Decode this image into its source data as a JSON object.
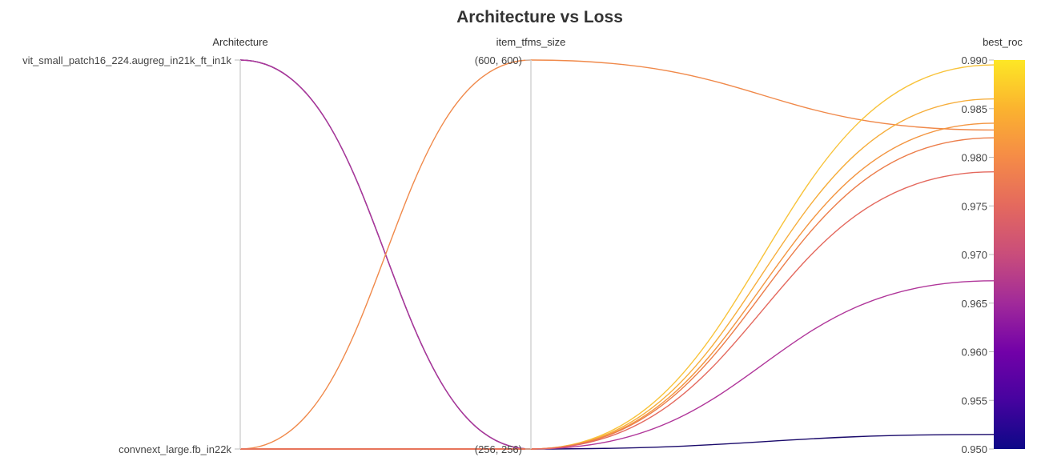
{
  "chart_data": {
    "type": "parallel_coordinates",
    "title": "Architecture vs Loss",
    "dimensions": [
      {
        "name": "Architecture",
        "kind": "categorical",
        "categories": [
          "vit_small_patch16_224.augreg_in21k_ft_in1k",
          "convnext_large.fb_in22k"
        ]
      },
      {
        "name": "item_tfms_size",
        "kind": "categorical",
        "categories": [
          "(600, 600)",
          "(256, 256)"
        ]
      },
      {
        "name": "best_roc",
        "kind": "numeric",
        "range": [
          0.95,
          0.99
        ],
        "ticks": [
          "0.990",
          "0.985",
          "0.980",
          "0.975",
          "0.970",
          "0.965",
          "0.960",
          "0.955",
          "0.950"
        ]
      }
    ],
    "colorbar": {
      "range": [
        0.95,
        0.99
      ],
      "stops": [
        "#fde725",
        "#fbb32f",
        "#f58b47",
        "#e4695e",
        "#c94d7b",
        "#a12a9a",
        "#7201a8",
        "#46039f",
        "#0d0887"
      ]
    },
    "runs": [
      {
        "Architecture": "vit_small_patch16_224.augreg_in21k_ft_in1k",
        "item_tfms_size": "(256, 256)",
        "best_roc": 0.9515,
        "color": "#1a0a6b"
      },
      {
        "Architecture": "vit_small_patch16_224.augreg_in21k_ft_in1k",
        "item_tfms_size": "(256, 256)",
        "best_roc": 0.9673,
        "color": "#b0369a"
      },
      {
        "Architecture": "convnext_large.fb_in22k",
        "item_tfms_size": "(600, 600)",
        "best_roc": 0.9828,
        "color": "#f0894a"
      },
      {
        "Architecture": "convnext_large.fb_in22k",
        "item_tfms_size": "(256, 256)",
        "best_roc": 0.9895,
        "color": "#f8c33a"
      },
      {
        "Architecture": "convnext_large.fb_in22k",
        "item_tfms_size": "(256, 256)",
        "best_roc": 0.986,
        "color": "#f6ad3a"
      },
      {
        "Architecture": "convnext_large.fb_in22k",
        "item_tfms_size": "(256, 256)",
        "best_roc": 0.9835,
        "color": "#f39540"
      },
      {
        "Architecture": "convnext_large.fb_in22k",
        "item_tfms_size": "(256, 256)",
        "best_roc": 0.982,
        "color": "#ec7d4a"
      },
      {
        "Architecture": "convnext_large.fb_in22k",
        "item_tfms_size": "(256, 256)",
        "best_roc": 0.9785,
        "color": "#e4695e"
      }
    ]
  }
}
